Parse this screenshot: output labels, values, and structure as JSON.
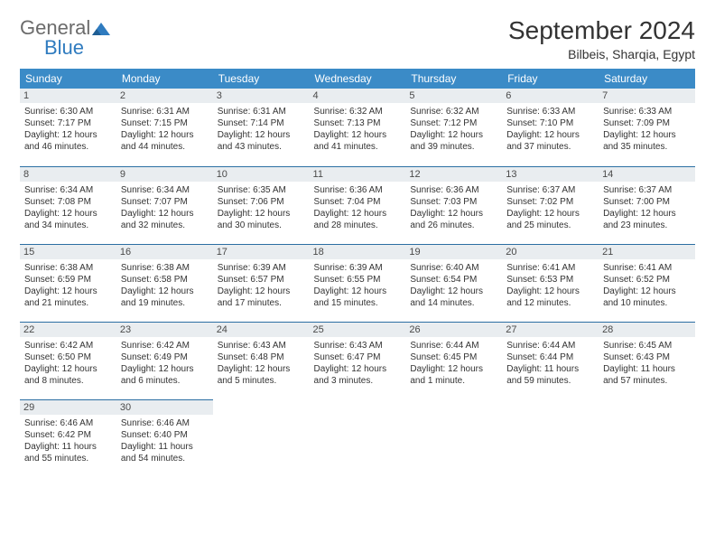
{
  "brand": {
    "part1": "General",
    "part2": "Blue"
  },
  "title": "September 2024",
  "location": "Bilbeis, Sharqia, Egypt",
  "colors": {
    "header_bg": "#3b8bc7",
    "header_text": "#ffffff",
    "daynum_bg": "#e9edf0",
    "row_border": "#2c6fa3",
    "brand_gray": "#6b6b6b",
    "brand_blue": "#2f7bbf",
    "page_bg": "#ffffff"
  },
  "weekdays": [
    "Sunday",
    "Monday",
    "Tuesday",
    "Wednesday",
    "Thursday",
    "Friday",
    "Saturday"
  ],
  "weeks": [
    [
      {
        "day": "1",
        "sunrise": "6:30 AM",
        "sunset": "7:17 PM",
        "daylight": "12 hours and 46 minutes."
      },
      {
        "day": "2",
        "sunrise": "6:31 AM",
        "sunset": "7:15 PM",
        "daylight": "12 hours and 44 minutes."
      },
      {
        "day": "3",
        "sunrise": "6:31 AM",
        "sunset": "7:14 PM",
        "daylight": "12 hours and 43 minutes."
      },
      {
        "day": "4",
        "sunrise": "6:32 AM",
        "sunset": "7:13 PM",
        "daylight": "12 hours and 41 minutes."
      },
      {
        "day": "5",
        "sunrise": "6:32 AM",
        "sunset": "7:12 PM",
        "daylight": "12 hours and 39 minutes."
      },
      {
        "day": "6",
        "sunrise": "6:33 AM",
        "sunset": "7:10 PM",
        "daylight": "12 hours and 37 minutes."
      },
      {
        "day": "7",
        "sunrise": "6:33 AM",
        "sunset": "7:09 PM",
        "daylight": "12 hours and 35 minutes."
      }
    ],
    [
      {
        "day": "8",
        "sunrise": "6:34 AM",
        "sunset": "7:08 PM",
        "daylight": "12 hours and 34 minutes."
      },
      {
        "day": "9",
        "sunrise": "6:34 AM",
        "sunset": "7:07 PM",
        "daylight": "12 hours and 32 minutes."
      },
      {
        "day": "10",
        "sunrise": "6:35 AM",
        "sunset": "7:06 PM",
        "daylight": "12 hours and 30 minutes."
      },
      {
        "day": "11",
        "sunrise": "6:36 AM",
        "sunset": "7:04 PM",
        "daylight": "12 hours and 28 minutes."
      },
      {
        "day": "12",
        "sunrise": "6:36 AM",
        "sunset": "7:03 PM",
        "daylight": "12 hours and 26 minutes."
      },
      {
        "day": "13",
        "sunrise": "6:37 AM",
        "sunset": "7:02 PM",
        "daylight": "12 hours and 25 minutes."
      },
      {
        "day": "14",
        "sunrise": "6:37 AM",
        "sunset": "7:00 PM",
        "daylight": "12 hours and 23 minutes."
      }
    ],
    [
      {
        "day": "15",
        "sunrise": "6:38 AM",
        "sunset": "6:59 PM",
        "daylight": "12 hours and 21 minutes."
      },
      {
        "day": "16",
        "sunrise": "6:38 AM",
        "sunset": "6:58 PM",
        "daylight": "12 hours and 19 minutes."
      },
      {
        "day": "17",
        "sunrise": "6:39 AM",
        "sunset": "6:57 PM",
        "daylight": "12 hours and 17 minutes."
      },
      {
        "day": "18",
        "sunrise": "6:39 AM",
        "sunset": "6:55 PM",
        "daylight": "12 hours and 15 minutes."
      },
      {
        "day": "19",
        "sunrise": "6:40 AM",
        "sunset": "6:54 PM",
        "daylight": "12 hours and 14 minutes."
      },
      {
        "day": "20",
        "sunrise": "6:41 AM",
        "sunset": "6:53 PM",
        "daylight": "12 hours and 12 minutes."
      },
      {
        "day": "21",
        "sunrise": "6:41 AM",
        "sunset": "6:52 PM",
        "daylight": "12 hours and 10 minutes."
      }
    ],
    [
      {
        "day": "22",
        "sunrise": "6:42 AM",
        "sunset": "6:50 PM",
        "daylight": "12 hours and 8 minutes."
      },
      {
        "day": "23",
        "sunrise": "6:42 AM",
        "sunset": "6:49 PM",
        "daylight": "12 hours and 6 minutes."
      },
      {
        "day": "24",
        "sunrise": "6:43 AM",
        "sunset": "6:48 PM",
        "daylight": "12 hours and 5 minutes."
      },
      {
        "day": "25",
        "sunrise": "6:43 AM",
        "sunset": "6:47 PM",
        "daylight": "12 hours and 3 minutes."
      },
      {
        "day": "26",
        "sunrise": "6:44 AM",
        "sunset": "6:45 PM",
        "daylight": "12 hours and 1 minute."
      },
      {
        "day": "27",
        "sunrise": "6:44 AM",
        "sunset": "6:44 PM",
        "daylight": "11 hours and 59 minutes."
      },
      {
        "day": "28",
        "sunrise": "6:45 AM",
        "sunset": "6:43 PM",
        "daylight": "11 hours and 57 minutes."
      }
    ],
    [
      {
        "day": "29",
        "sunrise": "6:46 AM",
        "sunset": "6:42 PM",
        "daylight": "11 hours and 55 minutes."
      },
      {
        "day": "30",
        "sunrise": "6:46 AM",
        "sunset": "6:40 PM",
        "daylight": "11 hours and 54 minutes."
      },
      null,
      null,
      null,
      null,
      null
    ]
  ],
  "labels": {
    "sunrise": "Sunrise:",
    "sunset": "Sunset:",
    "daylight": "Daylight:"
  }
}
